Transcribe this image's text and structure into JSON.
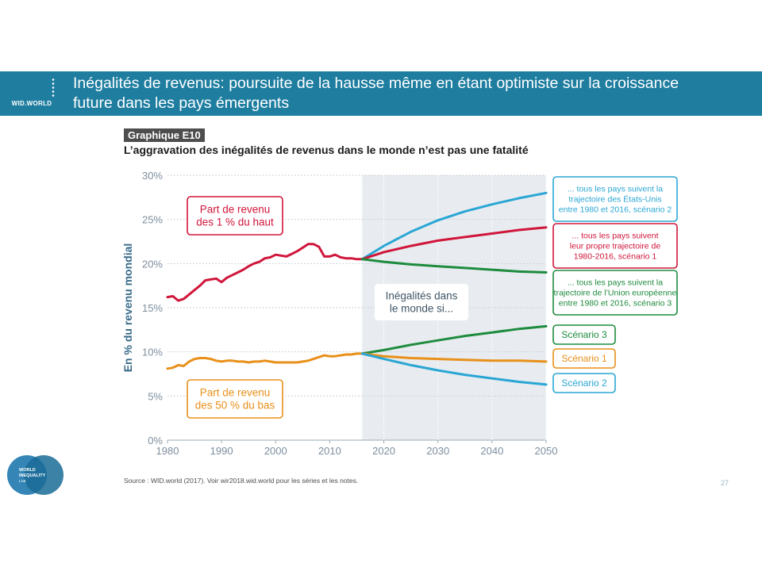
{
  "header": {
    "logo_text": "WID.WORLD",
    "title_line1": "Inégalités de revenus: poursuite de la hausse même en étant optimiste sur la croissance",
    "title_line2": "future dans les pays émergents"
  },
  "figure_label": "Graphique E10",
  "figure_subtitle": "L’aggravation des inégalités de revenus dans le monde n’est pas une fatalité",
  "source": "Source : WID.world (2017). Voir wir2018.wid.world pour les séries et les notes.",
  "page_number": "27",
  "footer_logo": [
    "WORLD",
    "INEQUALITY",
    "LAB"
  ],
  "colors": {
    "red": "#d0163b",
    "orange": "#e8901a",
    "green": "#1e8b3e",
    "blue": "#2aa6d4",
    "header": "#1f7ea0",
    "projection_bg": "#e8ecf0",
    "axis_text": "#7d8e9e",
    "ylabel": "#3a6c8a"
  },
  "chart_data": {
    "type": "line",
    "ylabel": "En % du revenu mondial",
    "xlabel": "",
    "xlim": [
      1980,
      2050
    ],
    "ylim": [
      0,
      30
    ],
    "xticks": [
      1980,
      1990,
      2000,
      2010,
      2020,
      2030,
      2040,
      2050
    ],
    "yticks": [
      0,
      5,
      10,
      15,
      20,
      25,
      30
    ],
    "ytick_suffix": "%",
    "grid": "horizontal",
    "projection_start": 2016,
    "series": [
      {
        "key": "top1",
        "color": "red",
        "x": [
          1980,
          1981,
          1982,
          1983,
          1984,
          1985,
          1986,
          1987,
          1988,
          1989,
          1990,
          1991,
          1992,
          1993,
          1994,
          1995,
          1996,
          1997,
          1998,
          1999,
          2000,
          2001,
          2002,
          2003,
          2004,
          2005,
          2006,
          2007,
          2008,
          2009,
          2010,
          2011,
          2012,
          2013,
          2014,
          2015,
          2016
        ],
        "values": [
          16.2,
          16.3,
          15.8,
          16.0,
          16.5,
          17.0,
          17.5,
          18.1,
          18.2,
          18.3,
          17.9,
          18.4,
          18.7,
          19.0,
          19.3,
          19.7,
          20.0,
          20.2,
          20.6,
          20.7,
          21.0,
          20.9,
          20.8,
          21.1,
          21.4,
          21.8,
          22.2,
          22.2,
          21.9,
          20.8,
          20.8,
          21.0,
          20.7,
          20.6,
          20.6,
          20.5,
          20.5
        ]
      },
      {
        "key": "bottom50",
        "color": "orange",
        "x": [
          1980,
          1981,
          1982,
          1983,
          1984,
          1985,
          1986,
          1987,
          1988,
          1989,
          1990,
          1991,
          1992,
          1993,
          1994,
          1995,
          1996,
          1997,
          1998,
          1999,
          2000,
          2001,
          2002,
          2003,
          2004,
          2005,
          2006,
          2007,
          2008,
          2009,
          2010,
          2011,
          2012,
          2013,
          2014,
          2015,
          2016
        ],
        "values": [
          8.1,
          8.2,
          8.5,
          8.4,
          8.9,
          9.2,
          9.3,
          9.3,
          9.2,
          9.0,
          8.9,
          9.0,
          9.0,
          8.9,
          8.9,
          8.8,
          8.9,
          8.9,
          9.0,
          8.9,
          8.8,
          8.8,
          8.8,
          8.8,
          8.8,
          8.9,
          9.0,
          9.2,
          9.4,
          9.6,
          9.5,
          9.5,
          9.6,
          9.7,
          9.7,
          9.8,
          9.8
        ]
      },
      {
        "key": "top1_scenario2",
        "color": "blue",
        "x": [
          2016,
          2020,
          2025,
          2030,
          2035,
          2040,
          2045,
          2050
        ],
        "values": [
          20.5,
          22.0,
          23.6,
          24.9,
          25.9,
          26.7,
          27.4,
          28.0
        ]
      },
      {
        "key": "top1_scenario1",
        "color": "red",
        "x": [
          2016,
          2020,
          2025,
          2030,
          2035,
          2040,
          2045,
          2050
        ],
        "values": [
          20.5,
          21.3,
          22.0,
          22.6,
          23.0,
          23.4,
          23.8,
          24.1
        ]
      },
      {
        "key": "top1_scenario3",
        "color": "green",
        "x": [
          2016,
          2020,
          2025,
          2030,
          2035,
          2040,
          2045,
          2050
        ],
        "values": [
          20.5,
          20.2,
          19.9,
          19.7,
          19.5,
          19.3,
          19.1,
          19.0
        ]
      },
      {
        "key": "bottom50_scenario3",
        "color": "green",
        "x": [
          2016,
          2020,
          2025,
          2030,
          2035,
          2040,
          2045,
          2050
        ],
        "values": [
          9.8,
          10.2,
          10.8,
          11.3,
          11.8,
          12.2,
          12.6,
          12.9
        ]
      },
      {
        "key": "bottom50_scenario1",
        "color": "orange",
        "x": [
          2016,
          2020,
          2025,
          2030,
          2035,
          2040,
          2045,
          2050
        ],
        "values": [
          9.8,
          9.5,
          9.3,
          9.2,
          9.1,
          9.0,
          9.0,
          8.9
        ]
      },
      {
        "key": "bottom50_scenario2",
        "color": "blue",
        "x": [
          2016,
          2020,
          2025,
          2030,
          2035,
          2040,
          2045,
          2050
        ],
        "values": [
          9.8,
          9.2,
          8.5,
          7.9,
          7.4,
          7.0,
          6.6,
          6.3
        ]
      }
    ],
    "annotations": {
      "top1_label": [
        "Part de revenu",
        "des 1 % du haut"
      ],
      "bottom50_label": [
        "Part de revenu",
        "des 50 % du bas"
      ],
      "center_label": [
        "Inégalités dans",
        "le monde si..."
      ],
      "scenario2_top": [
        "... tous les pays suivent la",
        "trajectoire des États-Unis",
        "entre 1980 et 2016, scénario 2"
      ],
      "scenario1_top": [
        "... tous les pays suivent",
        "leur propre trajectoire de",
        "1980-2016, scénario 1"
      ],
      "scenario3_top": [
        "... tous les pays suivent la",
        "trajectoire de l’Union européenne",
        "entre 1980 et 2016, scénario 3"
      ],
      "scenario3_bottom": "Scénario 3",
      "scenario1_bottom": "Scénario 1",
      "scenario2_bottom": "Scénario 2"
    }
  }
}
